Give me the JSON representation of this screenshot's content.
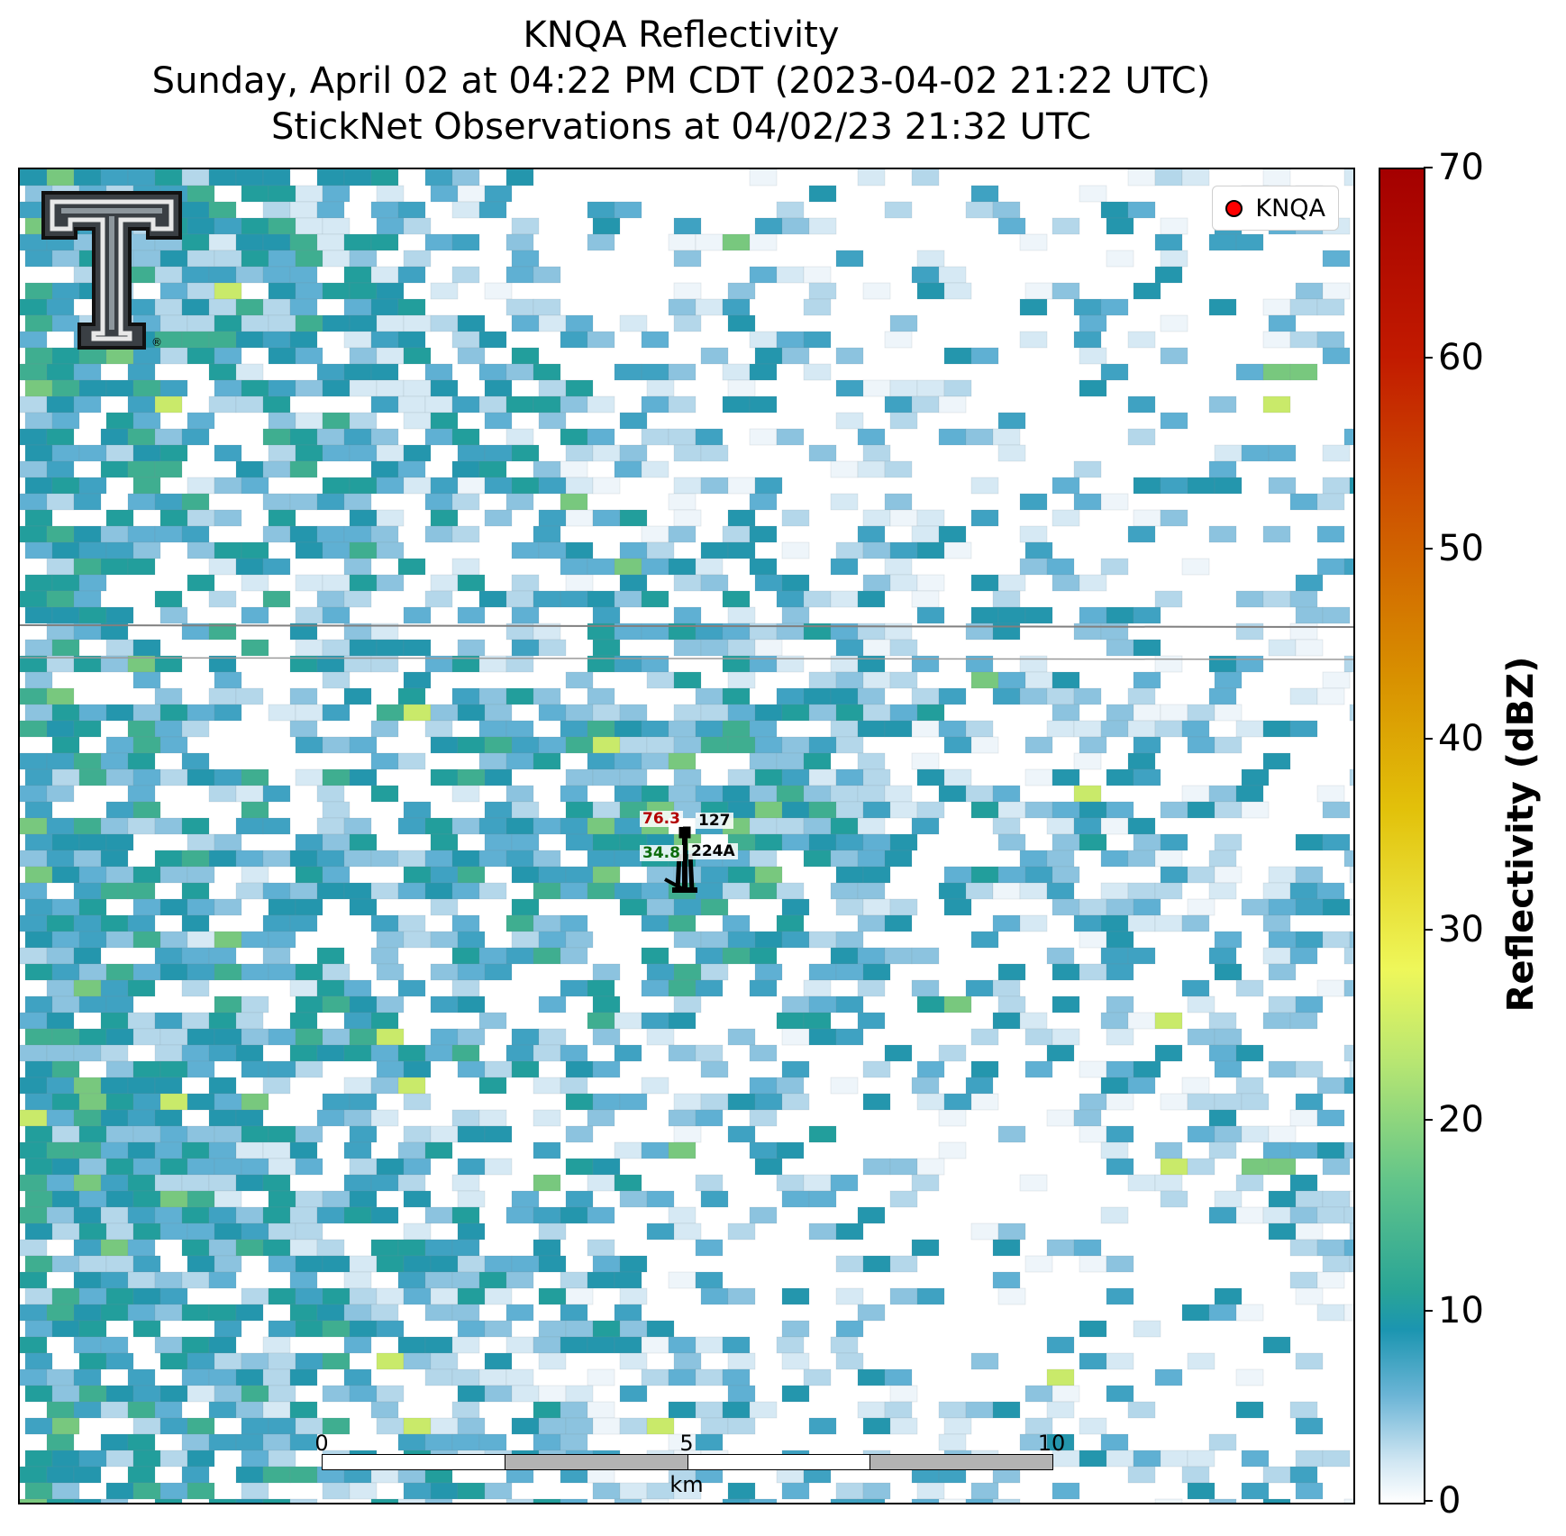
{
  "title": {
    "line1": "KNQA Reflectivity",
    "line2": "Sunday, April 02 at 04:22 PM CDT (2023-04-02 21:22 UTC)",
    "line3": "StickNet Observations at 04/02/23 21:32 UTC"
  },
  "legend": {
    "label": "KNQA",
    "marker_color": "#ff0000"
  },
  "station": {
    "temperature": "76.3",
    "dewpoint": "34.8",
    "pressure": "127",
    "station_id": "224A"
  },
  "scalebar": {
    "ticks": [
      "0",
      "5",
      "10"
    ],
    "unit": "km"
  },
  "colorbar": {
    "title": "Reflectivity (dBZ)",
    "ticks": [
      "0",
      "10",
      "20",
      "30",
      "40",
      "50",
      "60",
      "70"
    ],
    "range": [
      0,
      70
    ]
  },
  "logo": {
    "icon": "texas-tech-double-t-logo",
    "trademark": "®"
  }
}
